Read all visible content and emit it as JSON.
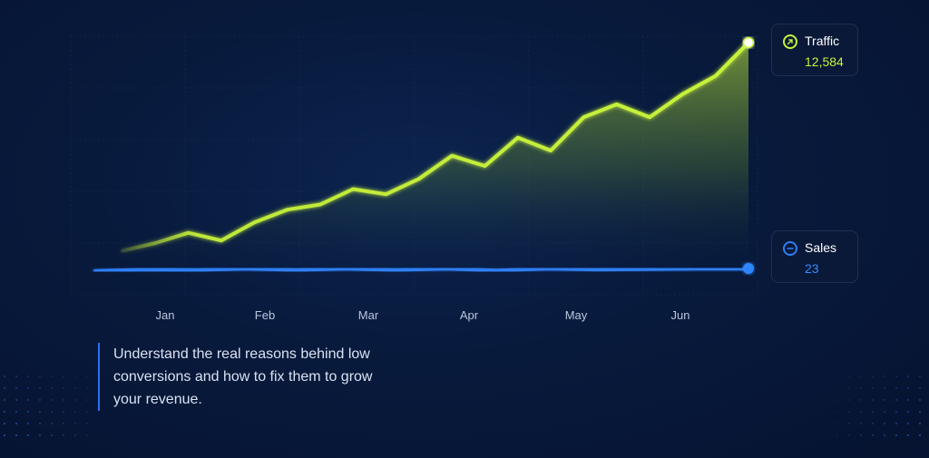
{
  "colors": {
    "traffic": "#c7f23a",
    "sales": "#2f7ff7",
    "background": "#081a3c"
  },
  "chart_data": {
    "type": "line",
    "x_labels": [
      "Jan",
      "Feb",
      "Mar",
      "Apr",
      "May",
      "Jun"
    ],
    "grid": true,
    "legend": "right",
    "series": [
      {
        "name": "Traffic",
        "value_label": "12,584",
        "icon": "arrow-up-right-icon",
        "values": [
          3,
          6,
          10,
          7,
          14,
          19,
          21,
          27,
          25,
          31,
          40,
          36,
          47,
          42,
          55,
          60,
          55,
          64,
          71,
          84
        ]
      },
      {
        "name": "Sales",
        "value_label": "23",
        "icon": "minus-icon",
        "values": [
          0,
          0.3,
          0.2,
          0.5,
          0.2,
          0.5,
          0.2,
          0.5,
          0.1,
          0.5,
          0.3,
          0.4,
          0.5,
          0.5
        ]
      }
    ]
  },
  "tagline": "Understand the real reasons behind low conversions and how to fix them to grow your revenue."
}
